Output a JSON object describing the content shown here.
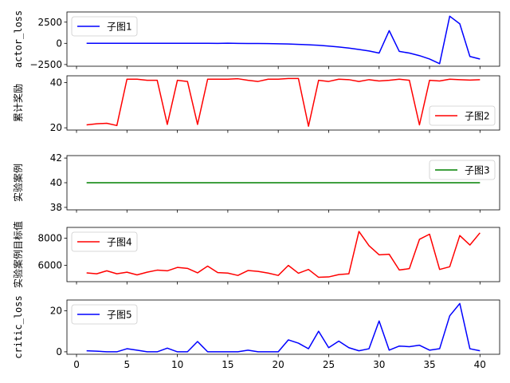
{
  "chart_data": [
    {
      "type": "line",
      "ylabel": "actor_loss",
      "xlim": [
        -0.95,
        41.95
      ],
      "ylim": [
        -2700,
        3700
      ],
      "yticks": [
        -2500,
        0,
        2500
      ],
      "ytick_labels": [
        "−2500",
        "0",
        "2500"
      ],
      "legend": "upper left",
      "series": [
        {
          "name": "子图1",
          "color": "#0000ff",
          "x": [
            1,
            2,
            3,
            4,
            5,
            6,
            7,
            8,
            9,
            10,
            11,
            12,
            13,
            14,
            15,
            16,
            17,
            18,
            19,
            20,
            21,
            22,
            23,
            24,
            25,
            26,
            27,
            28,
            29,
            30,
            31,
            32,
            33,
            34,
            35,
            36,
            37,
            38,
            39,
            40
          ],
          "values": [
            0,
            0,
            0,
            0,
            0,
            0,
            0,
            0,
            0,
            0,
            0,
            0,
            0,
            -10,
            20,
            -10,
            -15,
            -20,
            -35,
            -50,
            -80,
            -120,
            -170,
            -230,
            -320,
            -430,
            -560,
            -720,
            -900,
            -1150,
            1500,
            -950,
            -1150,
            -1450,
            -1850,
            -2400,
            3200,
            2300,
            -1550,
            -1850
          ]
        }
      ]
    },
    {
      "type": "line",
      "ylabel": "累计奖励",
      "xlim": [
        -0.95,
        41.95
      ],
      "ylim": [
        19,
        43
      ],
      "yticks": [
        20,
        40
      ],
      "ytick_labels": [
        "20",
        "40"
      ],
      "legend": "lower right",
      "series": [
        {
          "name": "子图2",
          "color": "#ff0000",
          "x": [
            1,
            2,
            3,
            4,
            5,
            6,
            7,
            8,
            9,
            10,
            11,
            12,
            13,
            14,
            15,
            16,
            17,
            18,
            19,
            20,
            21,
            22,
            23,
            24,
            25,
            26,
            27,
            28,
            29,
            30,
            31,
            32,
            33,
            34,
            35,
            36,
            37,
            38,
            39,
            40
          ],
          "values": [
            21.3,
            21.8,
            22.0,
            21.0,
            41.5,
            41.5,
            41.0,
            41.0,
            21.5,
            41.0,
            40.5,
            21.5,
            41.5,
            41.5,
            41.5,
            41.7,
            41.0,
            40.5,
            41.5,
            41.5,
            41.8,
            41.8,
            20.7,
            41.0,
            40.5,
            41.5,
            41.3,
            40.5,
            41.3,
            40.7,
            41.0,
            41.5,
            41.0,
            21.3,
            41.0,
            40.7,
            41.5,
            41.3,
            41.1,
            41.3
          ]
        }
      ]
    },
    {
      "type": "line",
      "ylabel": "实验案例",
      "xlim": [
        -0.95,
        41.95
      ],
      "ylim": [
        37.8,
        42.2
      ],
      "yticks": [
        38,
        40,
        42
      ],
      "ytick_labels": [
        "38",
        "40",
        "42"
      ],
      "legend": "upper right",
      "series": [
        {
          "name": "子图3",
          "color": "#008000",
          "x": [
            1,
            40
          ],
          "values": [
            40,
            40
          ]
        }
      ]
    },
    {
      "type": "line",
      "ylabel": "实验案例目标值",
      "xlim": [
        -0.95,
        41.95
      ],
      "ylim": [
        4800,
        8800
      ],
      "yticks": [
        6000,
        8000
      ],
      "ytick_labels": [
        "6000",
        "8000"
      ],
      "legend": "upper left",
      "series": [
        {
          "name": "子图4",
          "color": "#ff0000",
          "x": [
            1,
            2,
            3,
            4,
            5,
            6,
            7,
            8,
            9,
            10,
            11,
            12,
            13,
            14,
            15,
            16,
            17,
            18,
            19,
            20,
            21,
            22,
            23,
            24,
            25,
            26,
            27,
            28,
            29,
            30,
            31,
            32,
            33,
            34,
            35,
            36,
            37,
            38,
            39,
            40
          ],
          "values": [
            5450,
            5380,
            5600,
            5380,
            5500,
            5300,
            5500,
            5650,
            5600,
            5850,
            5780,
            5450,
            5950,
            5470,
            5430,
            5260,
            5620,
            5560,
            5430,
            5260,
            6000,
            5420,
            5700,
            5120,
            5150,
            5320,
            5380,
            8500,
            7450,
            6780,
            6820,
            5660,
            5760,
            7920,
            8300,
            5700,
            5900,
            8200,
            7500,
            8400
          ]
        }
      ]
    },
    {
      "type": "line",
      "ylabel": "critic_loss",
      "xlim": [
        -0.95,
        41.95
      ],
      "ylim": [
        -1.2,
        25.2
      ],
      "yticks": [
        0,
        20
      ],
      "ytick_labels": [
        "0",
        "20"
      ],
      "legend": "upper left",
      "series": [
        {
          "name": "子图5",
          "color": "#0000ff",
          "x": [
            1,
            2,
            3,
            4,
            5,
            6,
            7,
            8,
            9,
            10,
            11,
            12,
            13,
            14,
            15,
            16,
            17,
            18,
            19,
            20,
            21,
            22,
            23,
            24,
            25,
            26,
            27,
            28,
            29,
            30,
            31,
            32,
            33,
            34,
            35,
            36,
            37,
            38,
            39,
            40
          ],
          "values": [
            0.5,
            0.3,
            0,
            0,
            1.5,
            0.8,
            0,
            0,
            1.8,
            0,
            0,
            5,
            0,
            0,
            0,
            0,
            0.8,
            0,
            0,
            0,
            5.8,
            4.2,
            1.5,
            10,
            2,
            5.2,
            2,
            0.5,
            1.5,
            15,
            0.8,
            2.8,
            2.5,
            3.2,
            0.8,
            1.5,
            17.5,
            23.5,
            1.5,
            0.5
          ]
        }
      ]
    }
  ],
  "xticks": [
    0,
    5,
    10,
    15,
    20,
    25,
    30,
    35,
    40
  ],
  "xtick_labels": [
    "0",
    "5",
    "10",
    "15",
    "20",
    "25",
    "30",
    "35",
    "40"
  ]
}
